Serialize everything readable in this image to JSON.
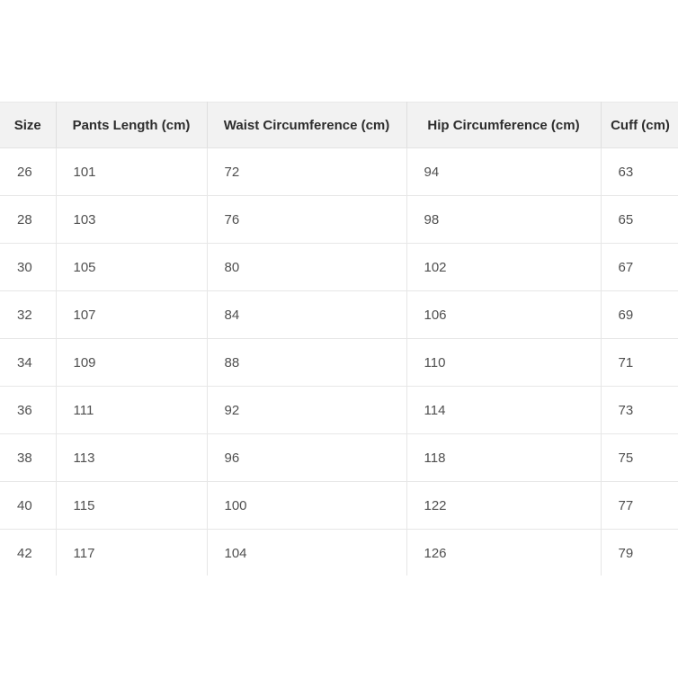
{
  "colors": {
    "header_bg": "#f2f2f2",
    "header_text": "#2d2d2d",
    "body_text": "#4f4f4f",
    "grid_border": "#e7e7e7",
    "page_bg": "#ffffff"
  },
  "table": {
    "columns": [
      "Size",
      "Pants Length (cm)",
      "Waist Circumference (cm)",
      "Hip Circumference (cm)",
      "Cuff (cm)"
    ],
    "rows": [
      [
        "26",
        "101",
        "72",
        "94",
        "63"
      ],
      [
        "28",
        "103",
        "76",
        "98",
        "65"
      ],
      [
        "30",
        "105",
        "80",
        "102",
        "67"
      ],
      [
        "32",
        "107",
        "84",
        "106",
        "69"
      ],
      [
        "34",
        "109",
        "88",
        "110",
        "71"
      ],
      [
        "36",
        "111",
        "92",
        "114",
        "73"
      ],
      [
        "38",
        "113",
        "96",
        "118",
        "75"
      ],
      [
        "40",
        "115",
        "100",
        "122",
        "77"
      ],
      [
        "42",
        "117",
        "104",
        "126",
        "79"
      ]
    ]
  },
  "chart_data": {
    "type": "table",
    "title": "",
    "columns": [
      "Size",
      "Pants Length (cm)",
      "Waist Circumference (cm)",
      "Hip Circumference (cm)",
      "Cuff (cm)"
    ],
    "rows": [
      [
        26,
        101,
        72,
        94,
        63
      ],
      [
        28,
        103,
        76,
        98,
        65
      ],
      [
        30,
        105,
        80,
        102,
        67
      ],
      [
        32,
        107,
        84,
        106,
        69
      ],
      [
        34,
        109,
        88,
        110,
        71
      ],
      [
        36,
        111,
        92,
        114,
        73
      ],
      [
        38,
        113,
        96,
        118,
        75
      ],
      [
        40,
        115,
        100,
        122,
        77
      ],
      [
        42,
        117,
        104,
        126,
        79
      ]
    ],
    "layout_hints": {
      "header_background": "#f2f2f2",
      "grid": true,
      "last_column_clipped_right": true,
      "last_row_clipped_bottom": true
    }
  }
}
